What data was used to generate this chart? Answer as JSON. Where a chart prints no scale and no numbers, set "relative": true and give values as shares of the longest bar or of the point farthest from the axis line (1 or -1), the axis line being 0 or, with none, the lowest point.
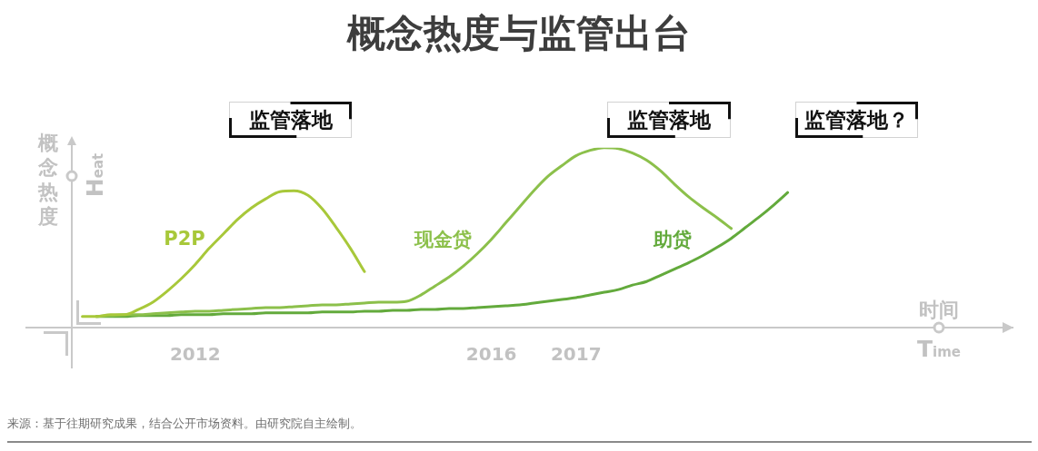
{
  "chart_data": {
    "type": "line",
    "title": "概念热度与监管出台",
    "xlabel": "时间",
    "ylabel": "概念热度",
    "relative": true,
    "categories": [
      null,
      null,
      null,
      null,
      null,
      null,
      null,
      null,
      null,
      null,
      null,
      null,
      "2012",
      null,
      null,
      null,
      null,
      null,
      null,
      null,
      null,
      null,
      null,
      null,
      null,
      null,
      null,
      null,
      null,
      null,
      null,
      null,
      null,
      "2016",
      null,
      null,
      null,
      null,
      null,
      "2017",
      null,
      null,
      null,
      null,
      null,
      null,
      null,
      null,
      null,
      null,
      null,
      null,
      null,
      null,
      null,
      null,
      null,
      null,
      null,
      null,
      null,
      null,
      null,
      null,
      null,
      null,
      null,
      null,
      null,
      null,
      null
    ],
    "series": [
      {
        "name": "P2P",
        "color": "#a8c83a",
        "values": [
          null,
          null,
          null,
          null,
          0.06,
          0.06,
          0.07,
          0.07,
          0.1,
          0.14,
          0.2,
          0.27,
          0.35,
          0.44,
          0.52,
          0.6,
          0.665,
          0.715,
          0.755,
          0.76,
          0.735,
          0.66,
          0.555,
          0.44,
          0.31,
          null,
          null,
          null,
          null,
          null,
          null,
          null,
          null,
          null,
          null,
          null,
          null,
          null,
          null,
          null,
          null,
          null,
          null,
          null,
          null,
          null,
          null,
          null,
          null,
          null,
          null,
          null,
          null,
          null,
          null,
          null,
          null,
          null,
          null,
          null,
          null,
          null,
          null,
          null,
          null,
          null,
          null,
          null,
          null,
          null,
          null
        ]
      },
      {
        "name": "现金贷",
        "color": "#8cc04b",
        "values": [
          null,
          null,
          null,
          null,
          null,
          0.06,
          0.065,
          0.07,
          0.07,
          0.075,
          0.08,
          0.085,
          0.09,
          0.09,
          0.095,
          0.1,
          0.105,
          0.11,
          0.11,
          0.115,
          0.12,
          0.125,
          0.125,
          0.13,
          0.135,
          0.14,
          0.14,
          0.145,
          0.18,
          0.23,
          0.28,
          0.34,
          0.41,
          0.49,
          0.58,
          0.67,
          0.76,
          0.84,
          0.9,
          0.955,
          0.985,
          1,
          0.995,
          0.97,
          0.93,
          0.87,
          0.795,
          0.725,
          0.665,
          0.61,
          0.55,
          null,
          null,
          null,
          null,
          null,
          null,
          null,
          null,
          null,
          null,
          null,
          null,
          null,
          null,
          null,
          null,
          null,
          null,
          null,
          null
        ]
      },
      {
        "name": "助贷",
        "color": "#63aa3c",
        "values": [
          null,
          null,
          null,
          null,
          null,
          0.06,
          0.06,
          0.06,
          0.065,
          0.065,
          0.065,
          0.07,
          0.07,
          0.07,
          0.075,
          0.075,
          0.075,
          0.08,
          0.08,
          0.08,
          0.08,
          0.085,
          0.085,
          0.085,
          0.09,
          0.09,
          0.095,
          0.095,
          0.1,
          0.1,
          0.105,
          0.105,
          0.11,
          0.115,
          0.12,
          0.125,
          0.135,
          0.145,
          0.155,
          0.165,
          0.18,
          0.195,
          0.21,
          0.235,
          0.255,
          0.29,
          0.325,
          0.36,
          0.4,
          0.445,
          0.495,
          0.555,
          0.615,
          0.68,
          0.75,
          null,
          null,
          null,
          null,
          null,
          null,
          null,
          null,
          null,
          null,
          null,
          null,
          null,
          null,
          null,
          null
        ]
      }
    ],
    "annotations": [
      "监管落地",
      "监管落地",
      "监管落地？",
      "Heat",
      "Time",
      "来源：基于往期研究成果，结合公开市场资料。由研究院自主绘制。"
    ]
  }
}
